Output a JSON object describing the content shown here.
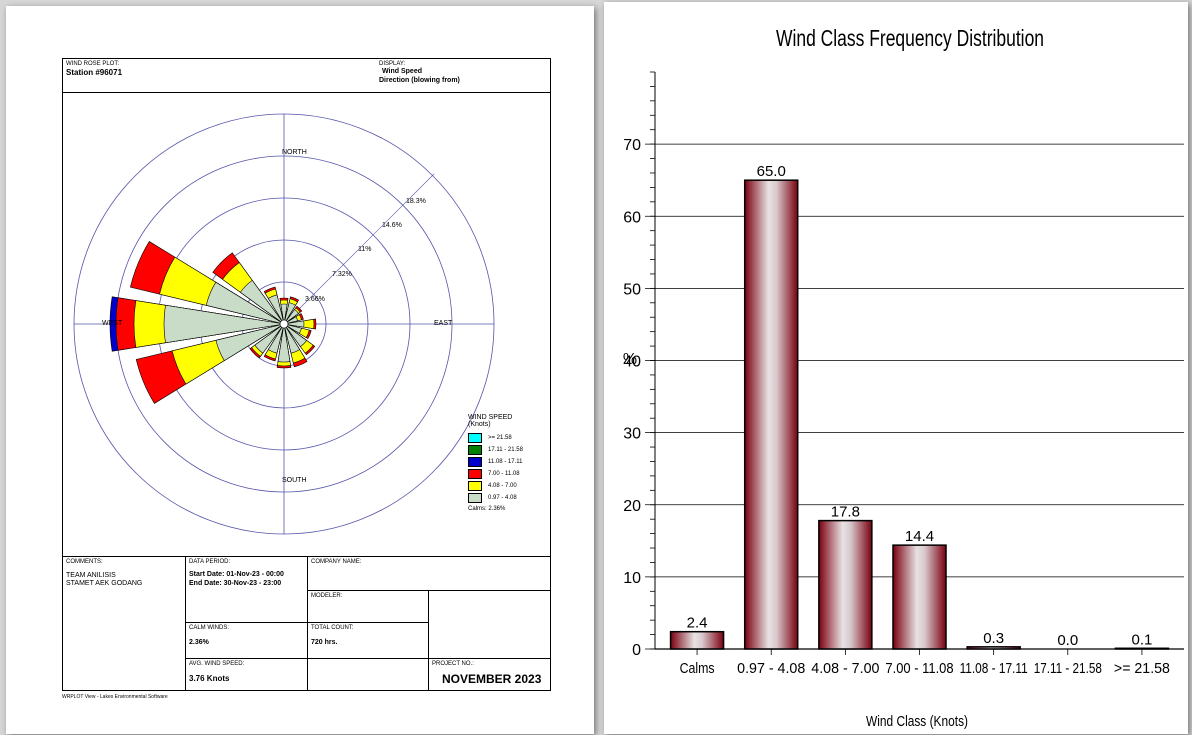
{
  "left": {
    "header": {
      "plot_label": "WIND ROSE PLOT:",
      "station": "Station #96071",
      "display_label": "DISPLAY:",
      "display_line1": "Wind Speed",
      "display_line2": "Direction (blowing from)"
    },
    "rose": {
      "north": "NORTH",
      "south": "SOUTH",
      "east": "EAST",
      "west": "WEST",
      "ring_labels": [
        "3.66%",
        "7.32%",
        "11%",
        "14.6%",
        "18.3%"
      ]
    },
    "legend": {
      "title1": "WIND SPEED",
      "title2": "(Knots)",
      "items": [
        {
          "label": ">= 21.58",
          "color": "#00ffff"
        },
        {
          "label": "17.11 - 21.58",
          "color": "#008000"
        },
        {
          "label": "11.08 - 17.11",
          "color": "#0000cc"
        },
        {
          "label": "7.00 - 11.08",
          "color": "#ff0000"
        },
        {
          "label": "4.08 - 7.00",
          "color": "#ffff00"
        },
        {
          "label": "0.97 - 4.08",
          "color": "#c8dcc8"
        }
      ],
      "calms": "Calms: 2.36%"
    },
    "footer": {
      "comments_label": "COMMENTS:",
      "comments_line1": "TEAM ANILISIS",
      "comments_line2": "STAMET AEK GODANG",
      "period_label": "DATA PERIOD:",
      "start": "Start Date: 01-Nov-23 - 00:00",
      "end": "End Date: 30-Nov-23 - 23:00",
      "company_label": "COMPANY NAME:",
      "modeler_label": "MODELER:",
      "calm_label": "CALM WINDS:",
      "calm_value": "2.36%",
      "total_label": "TOTAL COUNT:",
      "total_value": "720 hrs.",
      "avg_label": "AVG. WIND SPEED:",
      "avg_value": "3.76 Knots",
      "project_label": "PROJECT NO.:",
      "project_value": "NOVEMBER 2023"
    },
    "software": "WRPLOT View - Lakes Environmental Software"
  },
  "chart_data": {
    "type": "bar",
    "title": "Wind Class Frequency Distribution",
    "xlabel": "Wind Class (Knots)",
    "ylabel": "%",
    "categories": [
      "Calms",
      "0.97 - 4.08",
      "4.08 - 7.00",
      "7.00 - 11.08",
      "11.08 - 17.11",
      "17.11 - 21.58",
      ">= 21.58"
    ],
    "values": [
      2.4,
      65.0,
      17.8,
      14.4,
      0.3,
      0.0,
      0.1
    ],
    "value_labels": [
      "2.4",
      "65.0",
      "17.8",
      "14.4",
      "0.3",
      "0.0",
      "0.1"
    ],
    "ylim": [
      0,
      80
    ],
    "yticks": [
      0,
      10,
      20,
      30,
      40,
      50,
      60,
      70
    ],
    "grid": true,
    "bar_color": "#8b0a14"
  }
}
